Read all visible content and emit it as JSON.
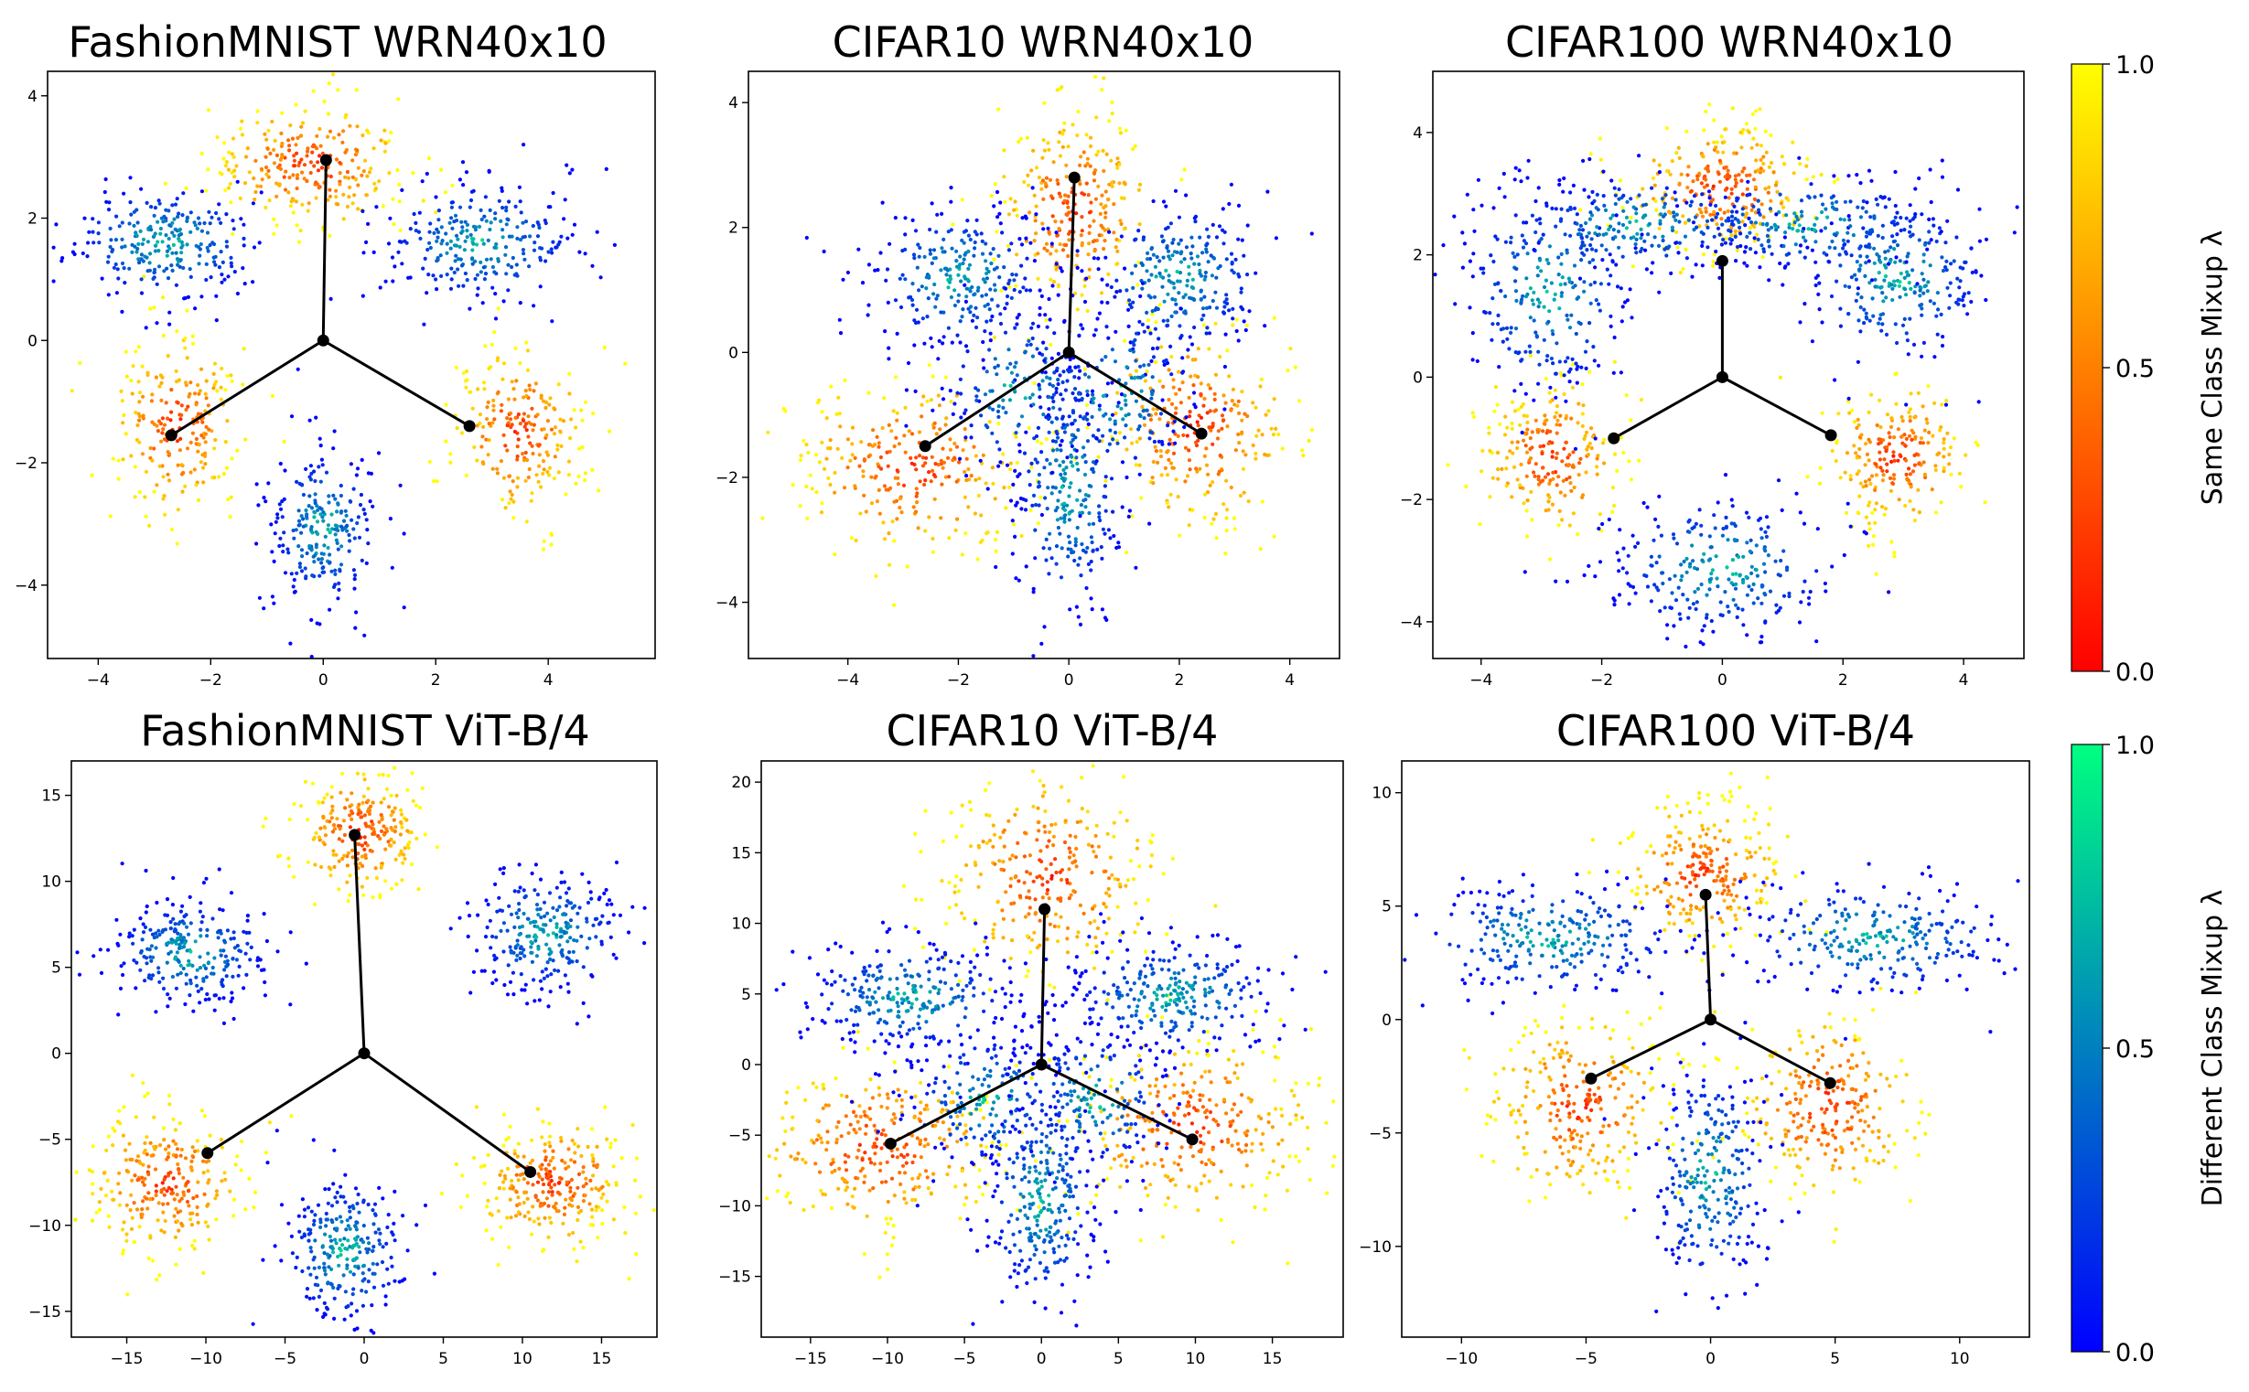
{
  "chart_data": [
    {
      "type": "scatter",
      "title": "FashionMNIST WRN40x10",
      "xlim": [
        -4.9,
        5.9
      ],
      "ylim": [
        -5.2,
        4.4
      ],
      "xticks": [
        -4,
        -2,
        0,
        2,
        4
      ],
      "yticks": [
        -4,
        -2,
        0,
        2,
        4
      ],
      "center": [
        0,
        0
      ],
      "vertices": [
        [
          0.05,
          2.95
        ],
        [
          -2.7,
          -1.55
        ],
        [
          2.6,
          -1.4
        ]
      ],
      "clusters": [
        {
          "kind": "same",
          "center": [
            -0.2,
            2.9
          ],
          "spread": [
            0.9,
            0.5
          ],
          "n": 260
        },
        {
          "kind": "same",
          "center": [
            -2.6,
            -1.4
          ],
          "spread": [
            0.6,
            0.7
          ],
          "n": 220
        },
        {
          "kind": "same",
          "center": [
            3.5,
            -1.5
          ],
          "spread": [
            0.6,
            0.7
          ],
          "n": 220
        },
        {
          "kind": "diff",
          "center": [
            -2.8,
            1.6
          ],
          "spread": [
            0.9,
            0.5
          ],
          "n": 260
        },
        {
          "kind": "diff",
          "center": [
            2.8,
            1.6
          ],
          "spread": [
            0.9,
            0.5
          ],
          "n": 260
        },
        {
          "kind": "diff",
          "center": [
            0.0,
            -3.1
          ],
          "spread": [
            0.5,
            0.7
          ],
          "n": 240
        }
      ]
    },
    {
      "type": "scatter",
      "title": "CIFAR10 WRN40x10",
      "xlim": [
        -5.8,
        4.9
      ],
      "ylim": [
        -4.9,
        4.5
      ],
      "xticks": [
        -4,
        -2,
        0,
        2,
        4
      ],
      "yticks": [
        -4,
        -2,
        0,
        2,
        4
      ],
      "center": [
        0,
        0
      ],
      "vertices": [
        [
          0.1,
          2.8
        ],
        [
          -2.6,
          -1.5
        ],
        [
          2.4,
          -1.3
        ]
      ],
      "clusters": [
        {
          "kind": "same",
          "center": [
            0.1,
            2.3
          ],
          "spread": [
            0.7,
            0.8
          ],
          "n": 260
        },
        {
          "kind": "same",
          "center": [
            -2.8,
            -1.8
          ],
          "spread": [
            1.1,
            0.7
          ],
          "n": 280
        },
        {
          "kind": "same",
          "center": [
            2.3,
            -1.2
          ],
          "spread": [
            0.9,
            0.8
          ],
          "n": 260
        },
        {
          "kind": "diff",
          "center": [
            -2.0,
            1.2
          ],
          "spread": [
            0.8,
            0.6
          ],
          "n": 260
        },
        {
          "kind": "diff",
          "center": [
            2.0,
            1.2
          ],
          "spread": [
            0.8,
            0.6
          ],
          "n": 260
        },
        {
          "kind": "diff",
          "center": [
            0.0,
            -2.2
          ],
          "spread": [
            0.5,
            1.0
          ],
          "n": 260
        },
        {
          "kind": "diff",
          "center": [
            -0.9,
            -0.6
          ],
          "spread": [
            0.7,
            0.7
          ],
          "n": 160
        },
        {
          "kind": "diff",
          "center": [
            0.9,
            -0.6
          ],
          "spread": [
            0.7,
            0.7
          ],
          "n": 160
        }
      ]
    },
    {
      "type": "scatter",
      "title": "CIFAR100 WRN40x10",
      "xlim": [
        -4.8,
        5.0
      ],
      "ylim": [
        -4.6,
        5.0
      ],
      "xticks": [
        -4,
        -2,
        0,
        2,
        4
      ],
      "yticks": [
        -4,
        -2,
        0,
        2,
        4
      ],
      "center": [
        0,
        0
      ],
      "vertices": [
        [
          0.0,
          1.9
        ],
        [
          -1.8,
          -1.0
        ],
        [
          1.8,
          -0.95
        ]
      ],
      "clusters": [
        {
          "kind": "same",
          "center": [
            0.0,
            3.1
          ],
          "spread": [
            0.8,
            0.5
          ],
          "n": 260
        },
        {
          "kind": "same",
          "center": [
            -2.8,
            -1.3
          ],
          "spread": [
            0.6,
            0.6
          ],
          "n": 220
        },
        {
          "kind": "same",
          "center": [
            2.9,
            -1.3
          ],
          "spread": [
            0.6,
            0.6
          ],
          "n": 220
        },
        {
          "kind": "diff",
          "center": [
            -2.9,
            1.4
          ],
          "spread": [
            0.7,
            0.9
          ],
          "n": 260
        },
        {
          "kind": "diff",
          "center": [
            2.9,
            1.6
          ],
          "spread": [
            0.8,
            0.7
          ],
          "n": 260
        },
        {
          "kind": "diff",
          "center": [
            0.0,
            -3.1
          ],
          "spread": [
            1.0,
            0.6
          ],
          "n": 260
        },
        {
          "kind": "diff",
          "center": [
            -1.4,
            2.5
          ],
          "spread": [
            1.1,
            0.4
          ],
          "n": 200
        },
        {
          "kind": "diff",
          "center": [
            1.4,
            2.5
          ],
          "spread": [
            1.1,
            0.4
          ],
          "n": 200
        }
      ]
    },
    {
      "type": "scatter",
      "title": "FashionMNIST ViT-B/4",
      "xlim": [
        -18.5,
        18.5
      ],
      "ylim": [
        -16.5,
        17.0
      ],
      "xticks": [
        -15,
        -10,
        -5,
        0,
        5,
        10,
        15
      ],
      "yticks": [
        -15,
        -10,
        -5,
        0,
        5,
        10,
        15
      ],
      "center": [
        0,
        0
      ],
      "vertices": [
        [
          -0.6,
          12.7
        ],
        [
          -9.9,
          -5.8
        ],
        [
          10.5,
          -6.9
        ]
      ],
      "clusters": [
        {
          "kind": "same",
          "center": [
            -0.2,
            12.8
          ],
          "spread": [
            2.0,
            1.8
          ],
          "n": 240
        },
        {
          "kind": "same",
          "center": [
            -12.5,
            -7.5
          ],
          "spread": [
            2.5,
            2.0
          ],
          "n": 260
        },
        {
          "kind": "same",
          "center": [
            12.0,
            -7.5
          ],
          "spread": [
            2.5,
            1.8
          ],
          "n": 260
        },
        {
          "kind": "diff",
          "center": [
            -11.0,
            5.8
          ],
          "spread": [
            2.6,
            1.6
          ],
          "n": 260
        },
        {
          "kind": "diff",
          "center": [
            11.5,
            7.0
          ],
          "spread": [
            2.5,
            1.8
          ],
          "n": 260
        },
        {
          "kind": "diff",
          "center": [
            -1.2,
            -11.5
          ],
          "spread": [
            2.0,
            2.2
          ],
          "n": 260
        }
      ]
    },
    {
      "type": "scatter",
      "title": "CIFAR10 ViT-B/4",
      "xlim": [
        -18.2,
        19.6
      ],
      "ylim": [
        -19.3,
        21.5
      ],
      "xticks": [
        -15,
        -10,
        -5,
        0,
        5,
        10,
        15
      ],
      "yticks": [
        -15,
        -10,
        -5,
        0,
        5,
        10,
        15,
        20
      ],
      "center": [
        0,
        0
      ],
      "vertices": [
        [
          0.2,
          11.0
        ],
        [
          -9.8,
          -5.6
        ],
        [
          9.8,
          -5.3
        ]
      ],
      "clusters": [
        {
          "kind": "same",
          "center": [
            0.5,
            13.5
          ],
          "spread": [
            3.5,
            3.5
          ],
          "n": 280
        },
        {
          "kind": "same",
          "center": [
            -10.5,
            -5.8
          ],
          "spread": [
            4.0,
            3.0
          ],
          "n": 300
        },
        {
          "kind": "same",
          "center": [
            10.0,
            -4.5
          ],
          "spread": [
            4.0,
            3.2
          ],
          "n": 300
        },
        {
          "kind": "diff",
          "center": [
            -8.5,
            4.8
          ],
          "spread": [
            3.5,
            2.0
          ],
          "n": 280
        },
        {
          "kind": "diff",
          "center": [
            8.5,
            4.8
          ],
          "spread": [
            3.5,
            2.0
          ],
          "n": 280
        },
        {
          "kind": "diff",
          "center": [
            0.0,
            -9.5
          ],
          "spread": [
            1.8,
            4.0
          ],
          "n": 280
        },
        {
          "kind": "diff",
          "center": [
            -3.5,
            -2.5
          ],
          "spread": [
            2.5,
            2.5
          ],
          "n": 160
        },
        {
          "kind": "diff",
          "center": [
            3.5,
            -2.5
          ],
          "spread": [
            2.5,
            2.5
          ],
          "n": 160
        }
      ]
    },
    {
      "type": "scatter",
      "title": "CIFAR100 ViT-B/4",
      "xlim": [
        -12.4,
        12.8
      ],
      "ylim": [
        -14.0,
        11.4
      ],
      "xticks": [
        -10,
        -5,
        0,
        5,
        10
      ],
      "yticks": [
        -10,
        -5,
        0,
        5,
        10
      ],
      "center": [
        0,
        0
      ],
      "vertices": [
        [
          -0.2,
          5.5
        ],
        [
          -4.8,
          -2.6
        ],
        [
          4.8,
          -2.8
        ]
      ],
      "clusters": [
        {
          "kind": "same",
          "center": [
            -0.3,
            6.4
          ],
          "spread": [
            1.6,
            1.6
          ],
          "n": 240
        },
        {
          "kind": "same",
          "center": [
            -5.2,
            -3.8
          ],
          "spread": [
            1.8,
            2.0
          ],
          "n": 260
        },
        {
          "kind": "same",
          "center": [
            4.8,
            -3.8
          ],
          "spread": [
            1.8,
            2.0
          ],
          "n": 260
        },
        {
          "kind": "diff",
          "center": [
            -6.5,
            3.6
          ],
          "spread": [
            2.8,
            1.3
          ],
          "n": 260
        },
        {
          "kind": "diff",
          "center": [
            6.5,
            3.6
          ],
          "spread": [
            2.8,
            1.3
          ],
          "n": 260
        },
        {
          "kind": "diff",
          "center": [
            0.0,
            -7.0
          ],
          "spread": [
            1.2,
            2.6
          ],
          "n": 260
        }
      ]
    }
  ],
  "colorbars": [
    {
      "label": "Same Class Mixup λ",
      "min_label": "0.0",
      "mid_label": "0.5",
      "max_label": "1.0",
      "colormap": "autumn",
      "colors": [
        "#ff0000",
        "#ffff00"
      ]
    },
    {
      "label": "Different Class Mixup λ",
      "min_label": "0.0",
      "mid_label": "0.5",
      "max_label": "1.0",
      "colormap": "winter",
      "colors": [
        "#0000ff",
        "#00ff80"
      ]
    }
  ]
}
